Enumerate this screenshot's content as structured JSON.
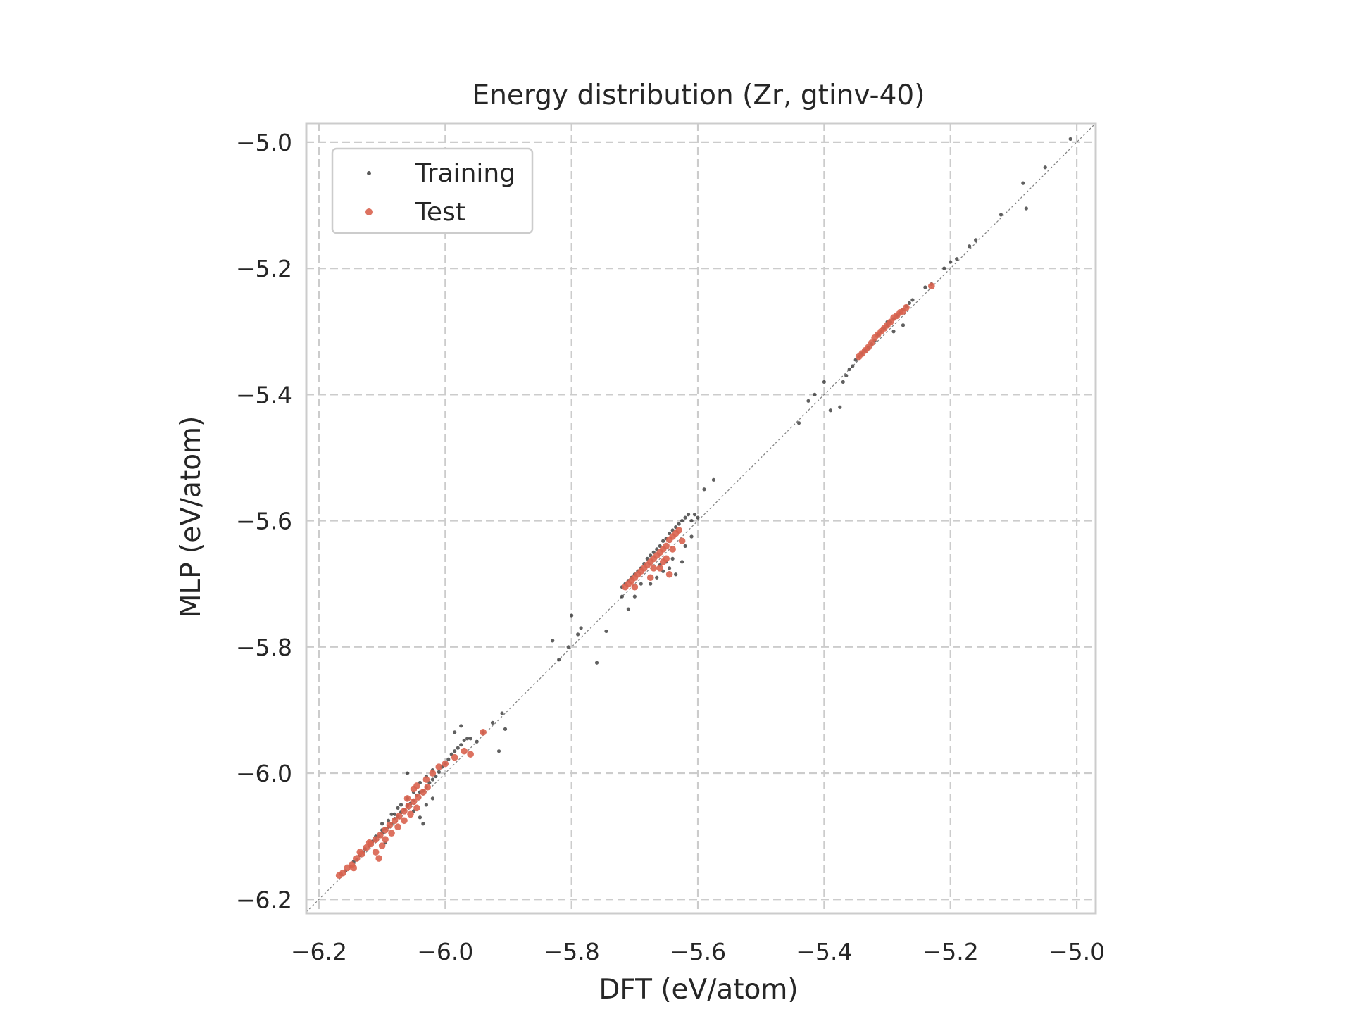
{
  "chart_data": {
    "type": "scatter",
    "title": "Energy distribution (Zr, gtinv-40)",
    "xlabel": "DFT (eV/atom)",
    "ylabel": "MLP (eV/atom)",
    "xlim": [
      -6.22,
      -4.97
    ],
    "ylim": [
      -6.222,
      -4.97
    ],
    "xticks": [
      -6.2,
      -6.0,
      -5.8,
      -5.6,
      -5.4,
      -5.2,
      -5.0
    ],
    "yticks": [
      -6.2,
      -6.0,
      -5.8,
      -5.6,
      -5.4,
      -5.2,
      -5.0
    ],
    "xtick_labels": [
      "−6.2",
      "−6.0",
      "−5.8",
      "−5.6",
      "−5.4",
      "−5.2",
      "−5.0"
    ],
    "ytick_labels": [
      "−6.2",
      "−6.0",
      "−5.8",
      "−5.6",
      "−5.4",
      "−5.2",
      "−5.0"
    ],
    "grid": true,
    "legend_position": "top-left",
    "reference_line": "y = x",
    "series": [
      {
        "name": "Training",
        "color": "#222222",
        "marker": "small-dot",
        "points": [
          [
            -6.165,
            -6.16
          ],
          [
            -6.158,
            -6.155
          ],
          [
            -6.15,
            -6.148
          ],
          [
            -6.145,
            -6.14
          ],
          [
            -6.14,
            -6.137
          ],
          [
            -6.135,
            -6.13
          ],
          [
            -6.13,
            -6.125
          ],
          [
            -6.127,
            -6.12
          ],
          [
            -6.12,
            -6.115
          ],
          [
            -6.115,
            -6.108
          ],
          [
            -6.11,
            -6.105
          ],
          [
            -6.105,
            -6.1
          ],
          [
            -6.1,
            -6.095
          ],
          [
            -6.095,
            -6.088
          ],
          [
            -6.09,
            -6.085
          ],
          [
            -6.085,
            -6.08
          ],
          [
            -6.08,
            -6.072
          ],
          [
            -6.075,
            -6.068
          ],
          [
            -6.07,
            -6.062
          ],
          [
            -6.065,
            -6.058
          ],
          [
            -6.06,
            -6.052
          ],
          [
            -6.055,
            -6.048
          ],
          [
            -6.05,
            -6.043
          ],
          [
            -6.045,
            -6.035
          ],
          [
            -6.04,
            -6.03
          ],
          [
            -6.035,
            -6.028
          ],
          [
            -6.03,
            -6.022
          ],
          [
            -6.025,
            -6.015
          ],
          [
            -6.02,
            -6.01
          ],
          [
            -6.015,
            -6.005
          ],
          [
            -6.01,
            -5.998
          ],
          [
            -6.005,
            -5.99
          ],
          [
            -6.0,
            -5.985
          ],
          [
            -5.995,
            -5.978
          ],
          [
            -5.99,
            -5.97
          ],
          [
            -5.985,
            -5.965
          ],
          [
            -5.98,
            -5.96
          ],
          [
            -5.975,
            -5.955
          ],
          [
            -5.97,
            -5.948
          ],
          [
            -5.965,
            -5.945
          ],
          [
            -6.11,
            -6.1
          ],
          [
            -6.1,
            -6.09
          ],
          [
            -6.09,
            -6.075
          ],
          [
            -6.08,
            -6.065
          ],
          [
            -6.07,
            -6.05
          ],
          [
            -6.06,
            -6.04
          ],
          [
            -6.05,
            -6.03
          ],
          [
            -6.04,
            -6.015
          ],
          [
            -6.03,
            -6.005
          ],
          [
            -6.02,
            -5.995
          ],
          [
            -6.1,
            -6.08
          ],
          [
            -6.085,
            -6.065
          ],
          [
            -6.075,
            -6.055
          ],
          [
            -6.06,
            -6.05
          ],
          [
            -6.05,
            -6.06
          ],
          [
            -6.04,
            -6.07
          ],
          [
            -6.03,
            -6.05
          ],
          [
            -6.02,
            -6.04
          ],
          [
            -6.035,
            -6.08
          ],
          [
            -6.095,
            -6.11
          ],
          [
            -5.985,
            -5.935
          ],
          [
            -5.96,
            -5.945
          ],
          [
            -5.95,
            -5.95
          ],
          [
            -5.94,
            -5.935
          ],
          [
            -5.925,
            -5.92
          ],
          [
            -5.91,
            -5.905
          ],
          [
            -5.905,
            -5.93
          ],
          [
            -5.915,
            -5.965
          ],
          [
            -5.975,
            -5.925
          ],
          [
            -6.06,
            -6.0
          ],
          [
            -5.83,
            -5.79
          ],
          [
            -5.82,
            -5.82
          ],
          [
            -5.805,
            -5.8
          ],
          [
            -5.8,
            -5.75
          ],
          [
            -5.79,
            -5.78
          ],
          [
            -5.785,
            -5.77
          ],
          [
            -5.76,
            -5.825
          ],
          [
            -5.745,
            -5.775
          ],
          [
            -5.72,
            -5.72
          ],
          [
            -5.715,
            -5.7
          ],
          [
            -5.71,
            -5.695
          ],
          [
            -5.705,
            -5.69
          ],
          [
            -5.7,
            -5.685
          ],
          [
            -5.695,
            -5.68
          ],
          [
            -5.69,
            -5.675
          ],
          [
            -5.685,
            -5.668
          ],
          [
            -5.68,
            -5.66
          ],
          [
            -5.675,
            -5.655
          ],
          [
            -5.67,
            -5.65
          ],
          [
            -5.665,
            -5.645
          ],
          [
            -5.66,
            -5.64
          ],
          [
            -5.655,
            -5.632
          ],
          [
            -5.65,
            -5.628
          ],
          [
            -5.645,
            -5.62
          ],
          [
            -5.64,
            -5.615
          ],
          [
            -5.635,
            -5.61
          ],
          [
            -5.63,
            -5.605
          ],
          [
            -5.625,
            -5.6
          ],
          [
            -5.62,
            -5.595
          ],
          [
            -5.615,
            -5.59
          ],
          [
            -5.61,
            -5.6
          ],
          [
            -5.605,
            -5.59
          ],
          [
            -5.6,
            -5.595
          ],
          [
            -5.61,
            -5.625
          ],
          [
            -5.62,
            -5.64
          ],
          [
            -5.625,
            -5.665
          ],
          [
            -5.635,
            -5.685
          ],
          [
            -5.645,
            -5.675
          ],
          [
            -5.655,
            -5.68
          ],
          [
            -5.665,
            -5.69
          ],
          [
            -5.675,
            -5.7
          ],
          [
            -5.69,
            -5.7
          ],
          [
            -5.7,
            -5.72
          ],
          [
            -5.71,
            -5.74
          ],
          [
            -5.72,
            -5.705
          ],
          [
            -5.66,
            -5.67
          ],
          [
            -5.65,
            -5.665
          ],
          [
            -5.64,
            -5.66
          ],
          [
            -5.59,
            -5.55
          ],
          [
            -5.575,
            -5.535
          ],
          [
            -5.44,
            -5.445
          ],
          [
            -5.425,
            -5.41
          ],
          [
            -5.415,
            -5.4
          ],
          [
            -5.4,
            -5.38
          ],
          [
            -5.39,
            -5.425
          ],
          [
            -5.375,
            -5.42
          ],
          [
            -5.37,
            -5.38
          ],
          [
            -5.365,
            -5.37
          ],
          [
            -5.36,
            -5.36
          ],
          [
            -5.355,
            -5.355
          ],
          [
            -5.35,
            -5.345
          ],
          [
            -5.345,
            -5.34
          ],
          [
            -5.34,
            -5.335
          ],
          [
            -5.335,
            -5.33
          ],
          [
            -5.33,
            -5.325
          ],
          [
            -5.325,
            -5.32
          ],
          [
            -5.32,
            -5.315
          ],
          [
            -5.315,
            -5.305
          ],
          [
            -5.31,
            -5.3
          ],
          [
            -5.305,
            -5.295
          ],
          [
            -5.3,
            -5.29
          ],
          [
            -5.295,
            -5.285
          ],
          [
            -5.29,
            -5.28
          ],
          [
            -5.285,
            -5.275
          ],
          [
            -5.28,
            -5.27
          ],
          [
            -5.275,
            -5.265
          ],
          [
            -5.27,
            -5.26
          ],
          [
            -5.265,
            -5.255
          ],
          [
            -5.26,
            -5.25
          ],
          [
            -5.3,
            -5.285
          ],
          [
            -5.29,
            -5.3
          ],
          [
            -5.275,
            -5.29
          ],
          [
            -5.24,
            -5.23
          ],
          [
            -5.23,
            -5.225
          ],
          [
            -5.21,
            -5.2
          ],
          [
            -5.2,
            -5.19
          ],
          [
            -5.19,
            -5.185
          ],
          [
            -5.17,
            -5.165
          ],
          [
            -5.16,
            -5.155
          ],
          [
            -5.12,
            -5.115
          ],
          [
            -5.085,
            -5.065
          ],
          [
            -5.08,
            -5.105
          ],
          [
            -5.05,
            -5.04
          ],
          [
            -5.01,
            -4.995
          ]
        ]
      },
      {
        "name": "Test",
        "color": "#d9634f",
        "marker": "dot",
        "points": [
          [
            -6.168,
            -6.162
          ],
          [
            -6.162,
            -6.158
          ],
          [
            -6.155,
            -6.15
          ],
          [
            -6.148,
            -6.145
          ],
          [
            -6.14,
            -6.135
          ],
          [
            -6.132,
            -6.128
          ],
          [
            -6.125,
            -6.118
          ],
          [
            -6.118,
            -6.112
          ],
          [
            -6.11,
            -6.105
          ],
          [
            -6.103,
            -6.098
          ],
          [
            -6.095,
            -6.09
          ],
          [
            -6.088,
            -6.082
          ],
          [
            -6.08,
            -6.075
          ],
          [
            -6.073,
            -6.068
          ],
          [
            -6.065,
            -6.06
          ],
          [
            -6.058,
            -6.052
          ],
          [
            -6.05,
            -6.045
          ],
          [
            -6.043,
            -6.038
          ],
          [
            -6.035,
            -6.03
          ],
          [
            -6.028,
            -6.022
          ],
          [
            -6.11,
            -6.125
          ],
          [
            -6.105,
            -6.135
          ],
          [
            -6.1,
            -6.115
          ],
          [
            -6.095,
            -6.105
          ],
          [
            -6.085,
            -6.095
          ],
          [
            -6.075,
            -6.085
          ],
          [
            -6.065,
            -6.075
          ],
          [
            -6.055,
            -6.065
          ],
          [
            -6.045,
            -6.055
          ],
          [
            -6.06,
            -6.04
          ],
          [
            -6.05,
            -6.025
          ],
          [
            -6.045,
            -6.02
          ],
          [
            -6.03,
            -6.01
          ],
          [
            -6.02,
            -6.0
          ],
          [
            -6.01,
            -5.99
          ],
          [
            -6.0,
            -5.985
          ],
          [
            -5.985,
            -5.975
          ],
          [
            -5.97,
            -5.965
          ],
          [
            -5.96,
            -5.97
          ],
          [
            -5.94,
            -5.935
          ],
          [
            -6.12,
            -6.11
          ],
          [
            -6.135,
            -6.125
          ],
          [
            -6.145,
            -6.15
          ],
          [
            -5.715,
            -5.705
          ],
          [
            -5.71,
            -5.7
          ],
          [
            -5.705,
            -5.695
          ],
          [
            -5.7,
            -5.69
          ],
          [
            -5.695,
            -5.685
          ],
          [
            -5.69,
            -5.68
          ],
          [
            -5.685,
            -5.675
          ],
          [
            -5.68,
            -5.67
          ],
          [
            -5.675,
            -5.665
          ],
          [
            -5.67,
            -5.66
          ],
          [
            -5.665,
            -5.655
          ],
          [
            -5.66,
            -5.65
          ],
          [
            -5.655,
            -5.645
          ],
          [
            -5.65,
            -5.64
          ],
          [
            -5.645,
            -5.63
          ],
          [
            -5.64,
            -5.625
          ],
          [
            -5.635,
            -5.62
          ],
          [
            -5.63,
            -5.615
          ],
          [
            -5.625,
            -5.632
          ],
          [
            -5.65,
            -5.66
          ],
          [
            -5.64,
            -5.645
          ],
          [
            -5.66,
            -5.675
          ],
          [
            -5.675,
            -5.69
          ],
          [
            -5.7,
            -5.705
          ],
          [
            -5.645,
            -5.685
          ],
          [
            -5.655,
            -5.665
          ],
          [
            -5.67,
            -5.675
          ],
          [
            -5.345,
            -5.34
          ],
          [
            -5.34,
            -5.335
          ],
          [
            -5.335,
            -5.33
          ],
          [
            -5.33,
            -5.325
          ],
          [
            -5.325,
            -5.318
          ],
          [
            -5.32,
            -5.31
          ],
          [
            -5.315,
            -5.305
          ],
          [
            -5.31,
            -5.3
          ],
          [
            -5.305,
            -5.295
          ],
          [
            -5.3,
            -5.29
          ],
          [
            -5.295,
            -5.285
          ],
          [
            -5.29,
            -5.278
          ],
          [
            -5.285,
            -5.275
          ],
          [
            -5.28,
            -5.27
          ],
          [
            -5.275,
            -5.268
          ],
          [
            -5.27,
            -5.262
          ],
          [
            -5.23,
            -5.228
          ]
        ]
      }
    ]
  }
}
